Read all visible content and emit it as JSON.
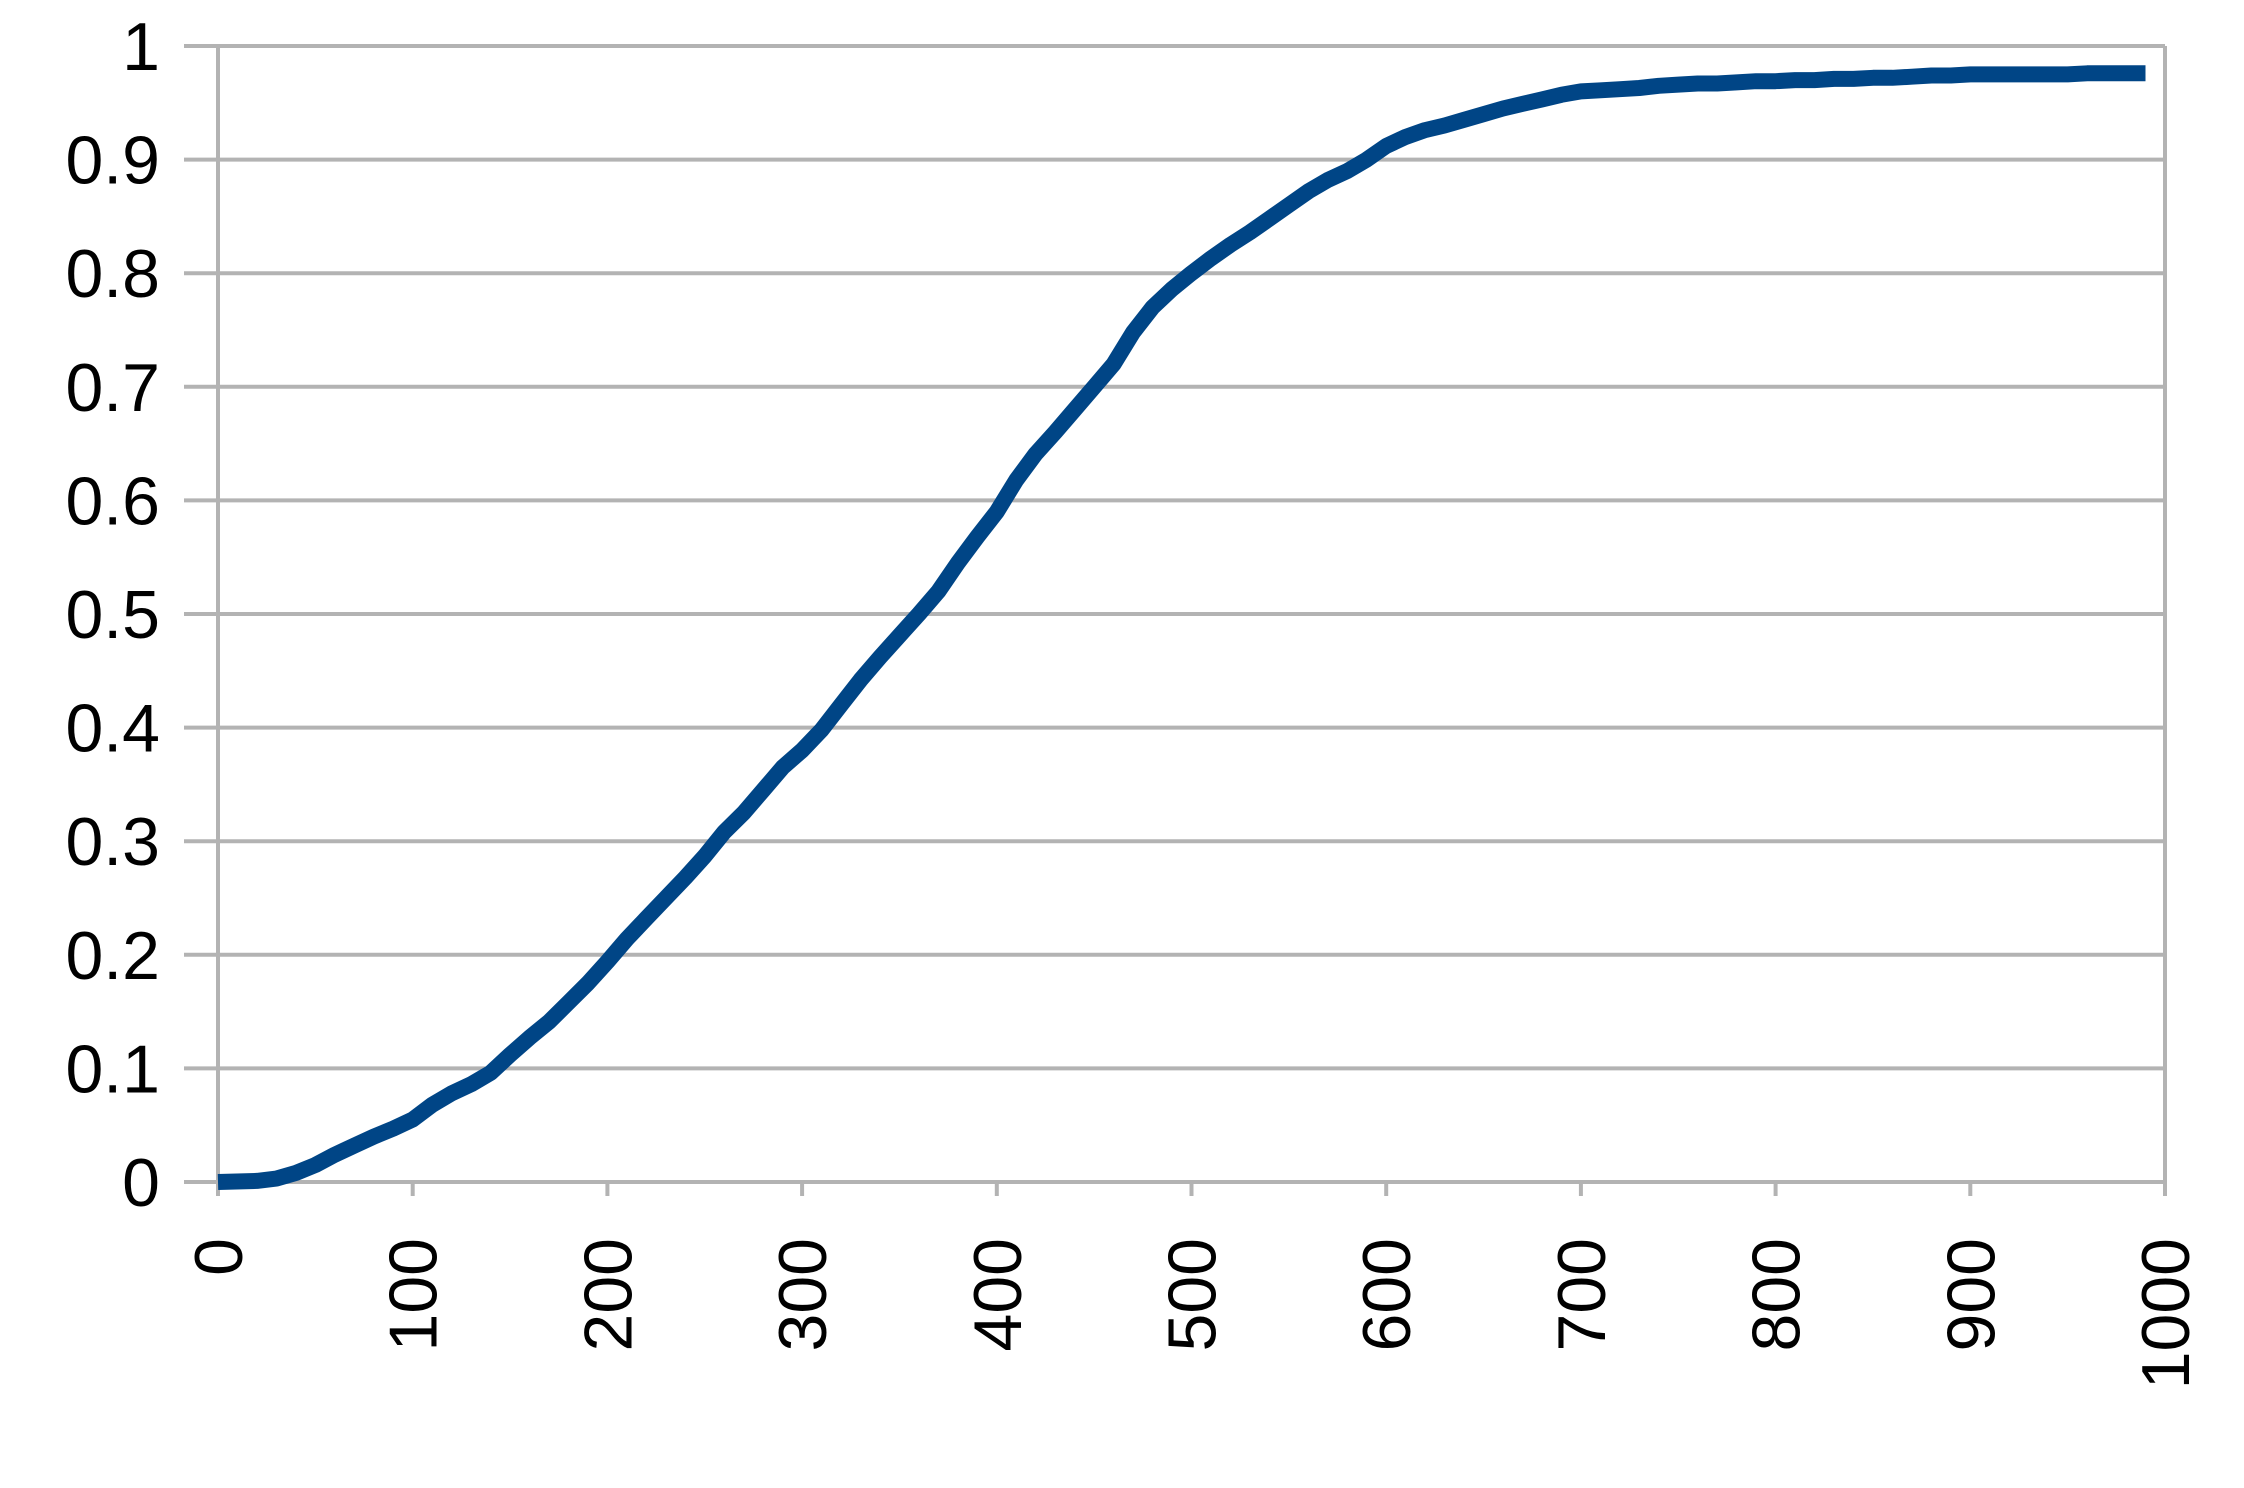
{
  "chart_data": {
    "type": "line",
    "title": "",
    "xlabel": "",
    "ylabel": "",
    "xlim": [
      0,
      1000
    ],
    "ylim": [
      0,
      1
    ],
    "grid": "horizontal",
    "legend": "none",
    "x_ticks": [
      "0",
      "100",
      "200",
      "300",
      "400",
      "500",
      "600",
      "700",
      "800",
      "900",
      "1000"
    ],
    "y_ticks": [
      "0",
      "0.1",
      "0.2",
      "0.3",
      "0.4",
      "0.5",
      "0.6",
      "0.7",
      "0.8",
      "0.9",
      "1"
    ],
    "series": [
      {
        "color": "#004586",
        "x": [
          0,
          20,
          30,
          40,
          50,
          60,
          70,
          80,
          90,
          100,
          110,
          120,
          130,
          140,
          150,
          160,
          170,
          180,
          190,
          200,
          210,
          220,
          230,
          240,
          250,
          260,
          270,
          280,
          290,
          300,
          310,
          320,
          330,
          340,
          350,
          360,
          370,
          380,
          390,
          400,
          410,
          420,
          430,
          440,
          450,
          460,
          470,
          480,
          490,
          500,
          510,
          520,
          530,
          540,
          550,
          560,
          570,
          580,
          590,
          600,
          610,
          620,
          630,
          640,
          650,
          660,
          670,
          680,
          690,
          700,
          710,
          720,
          730,
          740,
          750,
          760,
          770,
          780,
          790,
          800,
          810,
          820,
          830,
          840,
          850,
          860,
          870,
          880,
          890,
          900,
          910,
          920,
          930,
          940,
          950,
          960,
          970,
          980,
          990
        ],
        "y": [
          0.0,
          0.001,
          0.003,
          0.008,
          0.015,
          0.024,
          0.032,
          0.04,
          0.047,
          0.055,
          0.068,
          0.078,
          0.086,
          0.096,
          0.112,
          0.127,
          0.141,
          0.158,
          0.175,
          0.194,
          0.214,
          0.232,
          0.25,
          0.268,
          0.287,
          0.308,
          0.325,
          0.345,
          0.365,
          0.38,
          0.398,
          0.42,
          0.442,
          0.462,
          0.481,
          0.5,
          0.52,
          0.545,
          0.568,
          0.59,
          0.618,
          0.641,
          0.66,
          0.68,
          0.7,
          0.72,
          0.748,
          0.77,
          0.786,
          0.8,
          0.813,
          0.825,
          0.836,
          0.848,
          0.86,
          0.872,
          0.882,
          0.89,
          0.9,
          0.912,
          0.92,
          0.926,
          0.93,
          0.935,
          0.94,
          0.945,
          0.949,
          0.953,
          0.957,
          0.96,
          0.961,
          0.962,
          0.963,
          0.965,
          0.966,
          0.967,
          0.967,
          0.968,
          0.969,
          0.969,
          0.97,
          0.97,
          0.971,
          0.971,
          0.972,
          0.972,
          0.973,
          0.974,
          0.974,
          0.975,
          0.975,
          0.975,
          0.975,
          0.975,
          0.975,
          0.976,
          0.976,
          0.976,
          0.976
        ]
      }
    ]
  }
}
